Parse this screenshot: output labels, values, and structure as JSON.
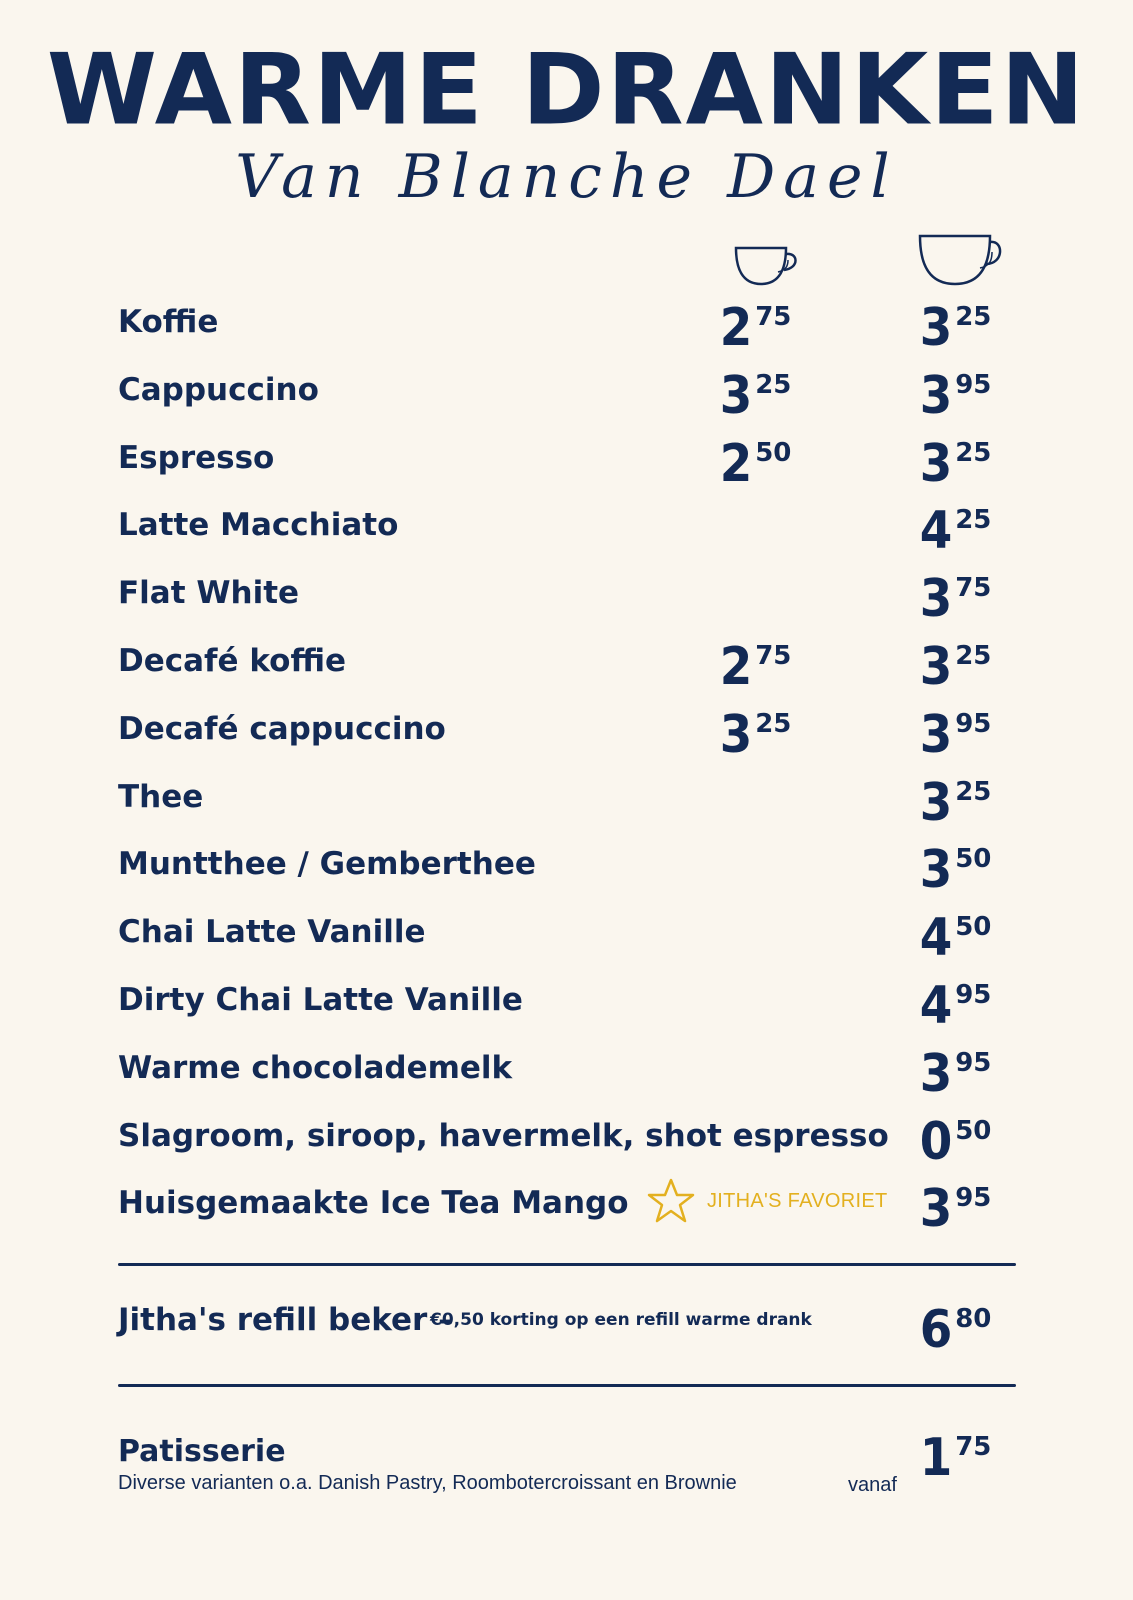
{
  "header": {
    "title": "WARME DRANKEN",
    "subtitle": "Van Blanche Dael"
  },
  "columns": {
    "small_icon": "small-cup-icon",
    "large_icon": "large-cup-icon"
  },
  "items": [
    {
      "name": "Koffie",
      "small": {
        "int": "2",
        "dec": "75"
      },
      "large": {
        "int": "3",
        "dec": "25"
      }
    },
    {
      "name": "Cappuccino",
      "small": {
        "int": "3",
        "dec": "25"
      },
      "large": {
        "int": "3",
        "dec": "95"
      }
    },
    {
      "name": "Espresso",
      "small": {
        "int": "2",
        "dec": "50"
      },
      "large": {
        "int": "3",
        "dec": "25"
      }
    },
    {
      "name": "Latte Macchiato",
      "large": {
        "int": "4",
        "dec": "25"
      }
    },
    {
      "name": "Flat White",
      "large": {
        "int": "3",
        "dec": "75"
      }
    },
    {
      "name": "Decafé koffie",
      "small": {
        "int": "2",
        "dec": "75"
      },
      "large": {
        "int": "3",
        "dec": "25"
      }
    },
    {
      "name": "Decafé cappuccino",
      "small": {
        "int": "3",
        "dec": "25"
      },
      "large": {
        "int": "3",
        "dec": "95"
      }
    },
    {
      "name": "Thee",
      "large": {
        "int": "3",
        "dec": "25"
      }
    },
    {
      "name": "Muntthee / Gemberthee",
      "large": {
        "int": "3",
        "dec": "50"
      }
    },
    {
      "name": "Chai Latte Vanille",
      "large": {
        "int": "4",
        "dec": "50"
      }
    },
    {
      "name": "Dirty Chai Latte Vanille",
      "large": {
        "int": "4",
        "dec": "95"
      }
    },
    {
      "name": "Warme chocolademelk",
      "large": {
        "int": "3",
        "dec": "95"
      }
    },
    {
      "name": "Slagroom, siroop, havermelk, shot espresso",
      "large": {
        "int": "0",
        "dec": "50"
      }
    },
    {
      "name": "Huisgemaakte Ice Tea Mango",
      "large": {
        "int": "3",
        "dec": "95"
      }
    }
  ],
  "favorite": {
    "label": "JITHA'S FAVORIET",
    "icon": "star-icon",
    "color": "#e3b01f"
  },
  "refill": {
    "name": "Jitha's refill beker –",
    "note": "€0,50 korting op een refill warme drank",
    "price": {
      "int": "6",
      "dec": "80"
    }
  },
  "patisserie": {
    "name": "Patisserie",
    "description": "Diverse varianten o.a. Danish Pastry,  Roombotercroissant en Brownie",
    "from_label": "vanaf",
    "price": {
      "int": "1",
      "dec": "75"
    }
  },
  "colors": {
    "ink": "#132a55",
    "background": "#faf6ee",
    "accent": "#e3b01f"
  }
}
